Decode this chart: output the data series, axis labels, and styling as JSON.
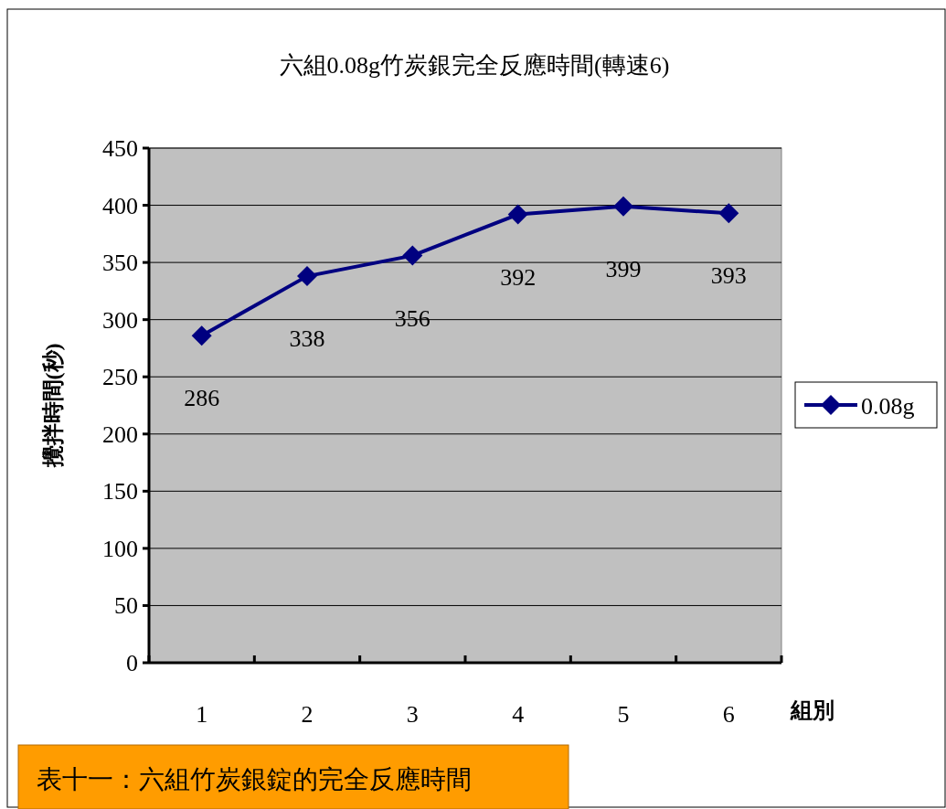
{
  "chart_data": {
    "type": "line",
    "title": "六組0.08g竹炭銀完全反應時間(轉速6)",
    "xlabel": "組別",
    "ylabel": "攪拌時間(秒)",
    "annotations": [
      "表十一：六組竹炭銀錠的完全反應時間"
    ],
    "categories": [
      "1",
      "2",
      "3",
      "4",
      "5",
      "6"
    ],
    "series": [
      {
        "name": "0.08g",
        "color": "#000080",
        "values": [
          286,
          338,
          356,
          392,
          399,
          393
        ]
      }
    ],
    "ylim": [
      0,
      450
    ],
    "yticks": [
      0,
      50,
      100,
      150,
      200,
      250,
      300,
      350,
      400,
      450
    ],
    "grid": "y",
    "legend": "right",
    "marker": "diamond",
    "line_style": "solid",
    "data_labels": true
  }
}
